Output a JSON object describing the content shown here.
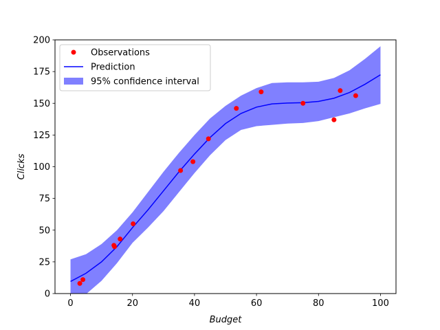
{
  "chart_data": {
    "type": "scatter",
    "xlabel": "Budget",
    "ylabel": "Clicks",
    "xlim": [
      -5,
      105
    ],
    "ylim": [
      0,
      200
    ],
    "xticks": [
      0,
      20,
      40,
      60,
      80,
      100
    ],
    "yticks": [
      0,
      25,
      50,
      75,
      100,
      125,
      150,
      175,
      200
    ],
    "grid": false,
    "legend_position": "top-left",
    "legend": {
      "observations": "Observations",
      "prediction": "Prediction",
      "interval": "95% confidence interval"
    },
    "colors": {
      "observations": "#ff0000",
      "prediction": "#0000ff",
      "interval": "#8080ff"
    },
    "observations": [
      {
        "x": 3,
        "y": 8
      },
      {
        "x": 4,
        "y": 11
      },
      {
        "x": 14,
        "y": 38
      },
      {
        "x": 14.2,
        "y": 37
      },
      {
        "x": 16,
        "y": 43
      },
      {
        "x": 20.2,
        "y": 55
      },
      {
        "x": 35.5,
        "y": 97
      },
      {
        "x": 39.5,
        "y": 104
      },
      {
        "x": 44.5,
        "y": 122
      },
      {
        "x": 53.5,
        "y": 146
      },
      {
        "x": 61.5,
        "y": 159
      },
      {
        "x": 75,
        "y": 150
      },
      {
        "x": 85,
        "y": 137
      },
      {
        "x": 87,
        "y": 160
      },
      {
        "x": 92,
        "y": 156
      }
    ],
    "prediction": [
      {
        "x": 0,
        "y": 9.5,
        "lower": -8,
        "upper": 27
      },
      {
        "x": 5,
        "y": 16,
        "lower": -0.5,
        "upper": 31
      },
      {
        "x": 10,
        "y": 25,
        "lower": 10,
        "upper": 39
      },
      {
        "x": 15,
        "y": 37,
        "lower": 24,
        "upper": 50
      },
      {
        "x": 20,
        "y": 52,
        "lower": 40,
        "upper": 64
      },
      {
        "x": 25,
        "y": 66,
        "lower": 52,
        "upper": 80
      },
      {
        "x": 30,
        "y": 81,
        "lower": 65,
        "upper": 96
      },
      {
        "x": 35,
        "y": 96,
        "lower": 80,
        "upper": 111
      },
      {
        "x": 40,
        "y": 110,
        "lower": 95,
        "upper": 125
      },
      {
        "x": 45,
        "y": 123,
        "lower": 109,
        "upper": 138
      },
      {
        "x": 50,
        "y": 134,
        "lower": 121,
        "upper": 148
      },
      {
        "x": 55,
        "y": 142,
        "lower": 129,
        "upper": 156
      },
      {
        "x": 60,
        "y": 147,
        "lower": 132,
        "upper": 162
      },
      {
        "x": 65,
        "y": 149.5,
        "lower": 133,
        "upper": 166
      },
      {
        "x": 70,
        "y": 150.2,
        "lower": 134,
        "upper": 166.5
      },
      {
        "x": 75,
        "y": 150.5,
        "lower": 134.5,
        "upper": 166.5
      },
      {
        "x": 80,
        "y": 151.5,
        "lower": 136,
        "upper": 167
      },
      {
        "x": 85,
        "y": 154,
        "lower": 139,
        "upper": 170
      },
      {
        "x": 90,
        "y": 158.5,
        "lower": 142,
        "upper": 176
      },
      {
        "x": 95,
        "y": 165,
        "lower": 146,
        "upper": 185
      },
      {
        "x": 100,
        "y": 172.5,
        "lower": 149.5,
        "upper": 195
      }
    ]
  }
}
